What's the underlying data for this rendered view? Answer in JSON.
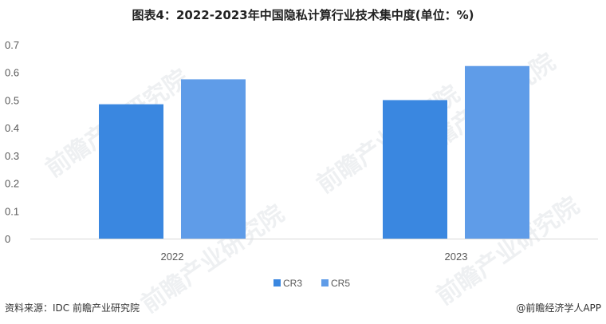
{
  "title": "图表4：2022-2023年中国隐私计算行业技术集中度(单位：%)",
  "watermark_text": "前瞻产业研究院",
  "footer": {
    "source": "资料来源：IDC 前瞻产业研究院",
    "brand": "@前瞻经济学人APP"
  },
  "colors": {
    "CR3": "#3a87e0",
    "CR5": "#5f9ce8",
    "axis": "#d9d9d9"
  },
  "chart_data": {
    "type": "bar",
    "title": "图表4：2022-2023年中国隐私计算行业技术集中度(单位：%)",
    "categories": [
      "2022",
      "2023"
    ],
    "series": [
      {
        "name": "CR3",
        "values": [
          0.485,
          0.5
        ]
      },
      {
        "name": "CR5",
        "values": [
          0.575,
          0.623
        ]
      }
    ],
    "ylim": [
      0,
      0.7
    ],
    "yticks": [
      "0",
      "0.1",
      "0.2",
      "0.3",
      "0.4",
      "0.5",
      "0.6",
      "0.7"
    ],
    "xlabel": "",
    "ylabel": "",
    "grid": false,
    "legend": "bottom-center"
  }
}
